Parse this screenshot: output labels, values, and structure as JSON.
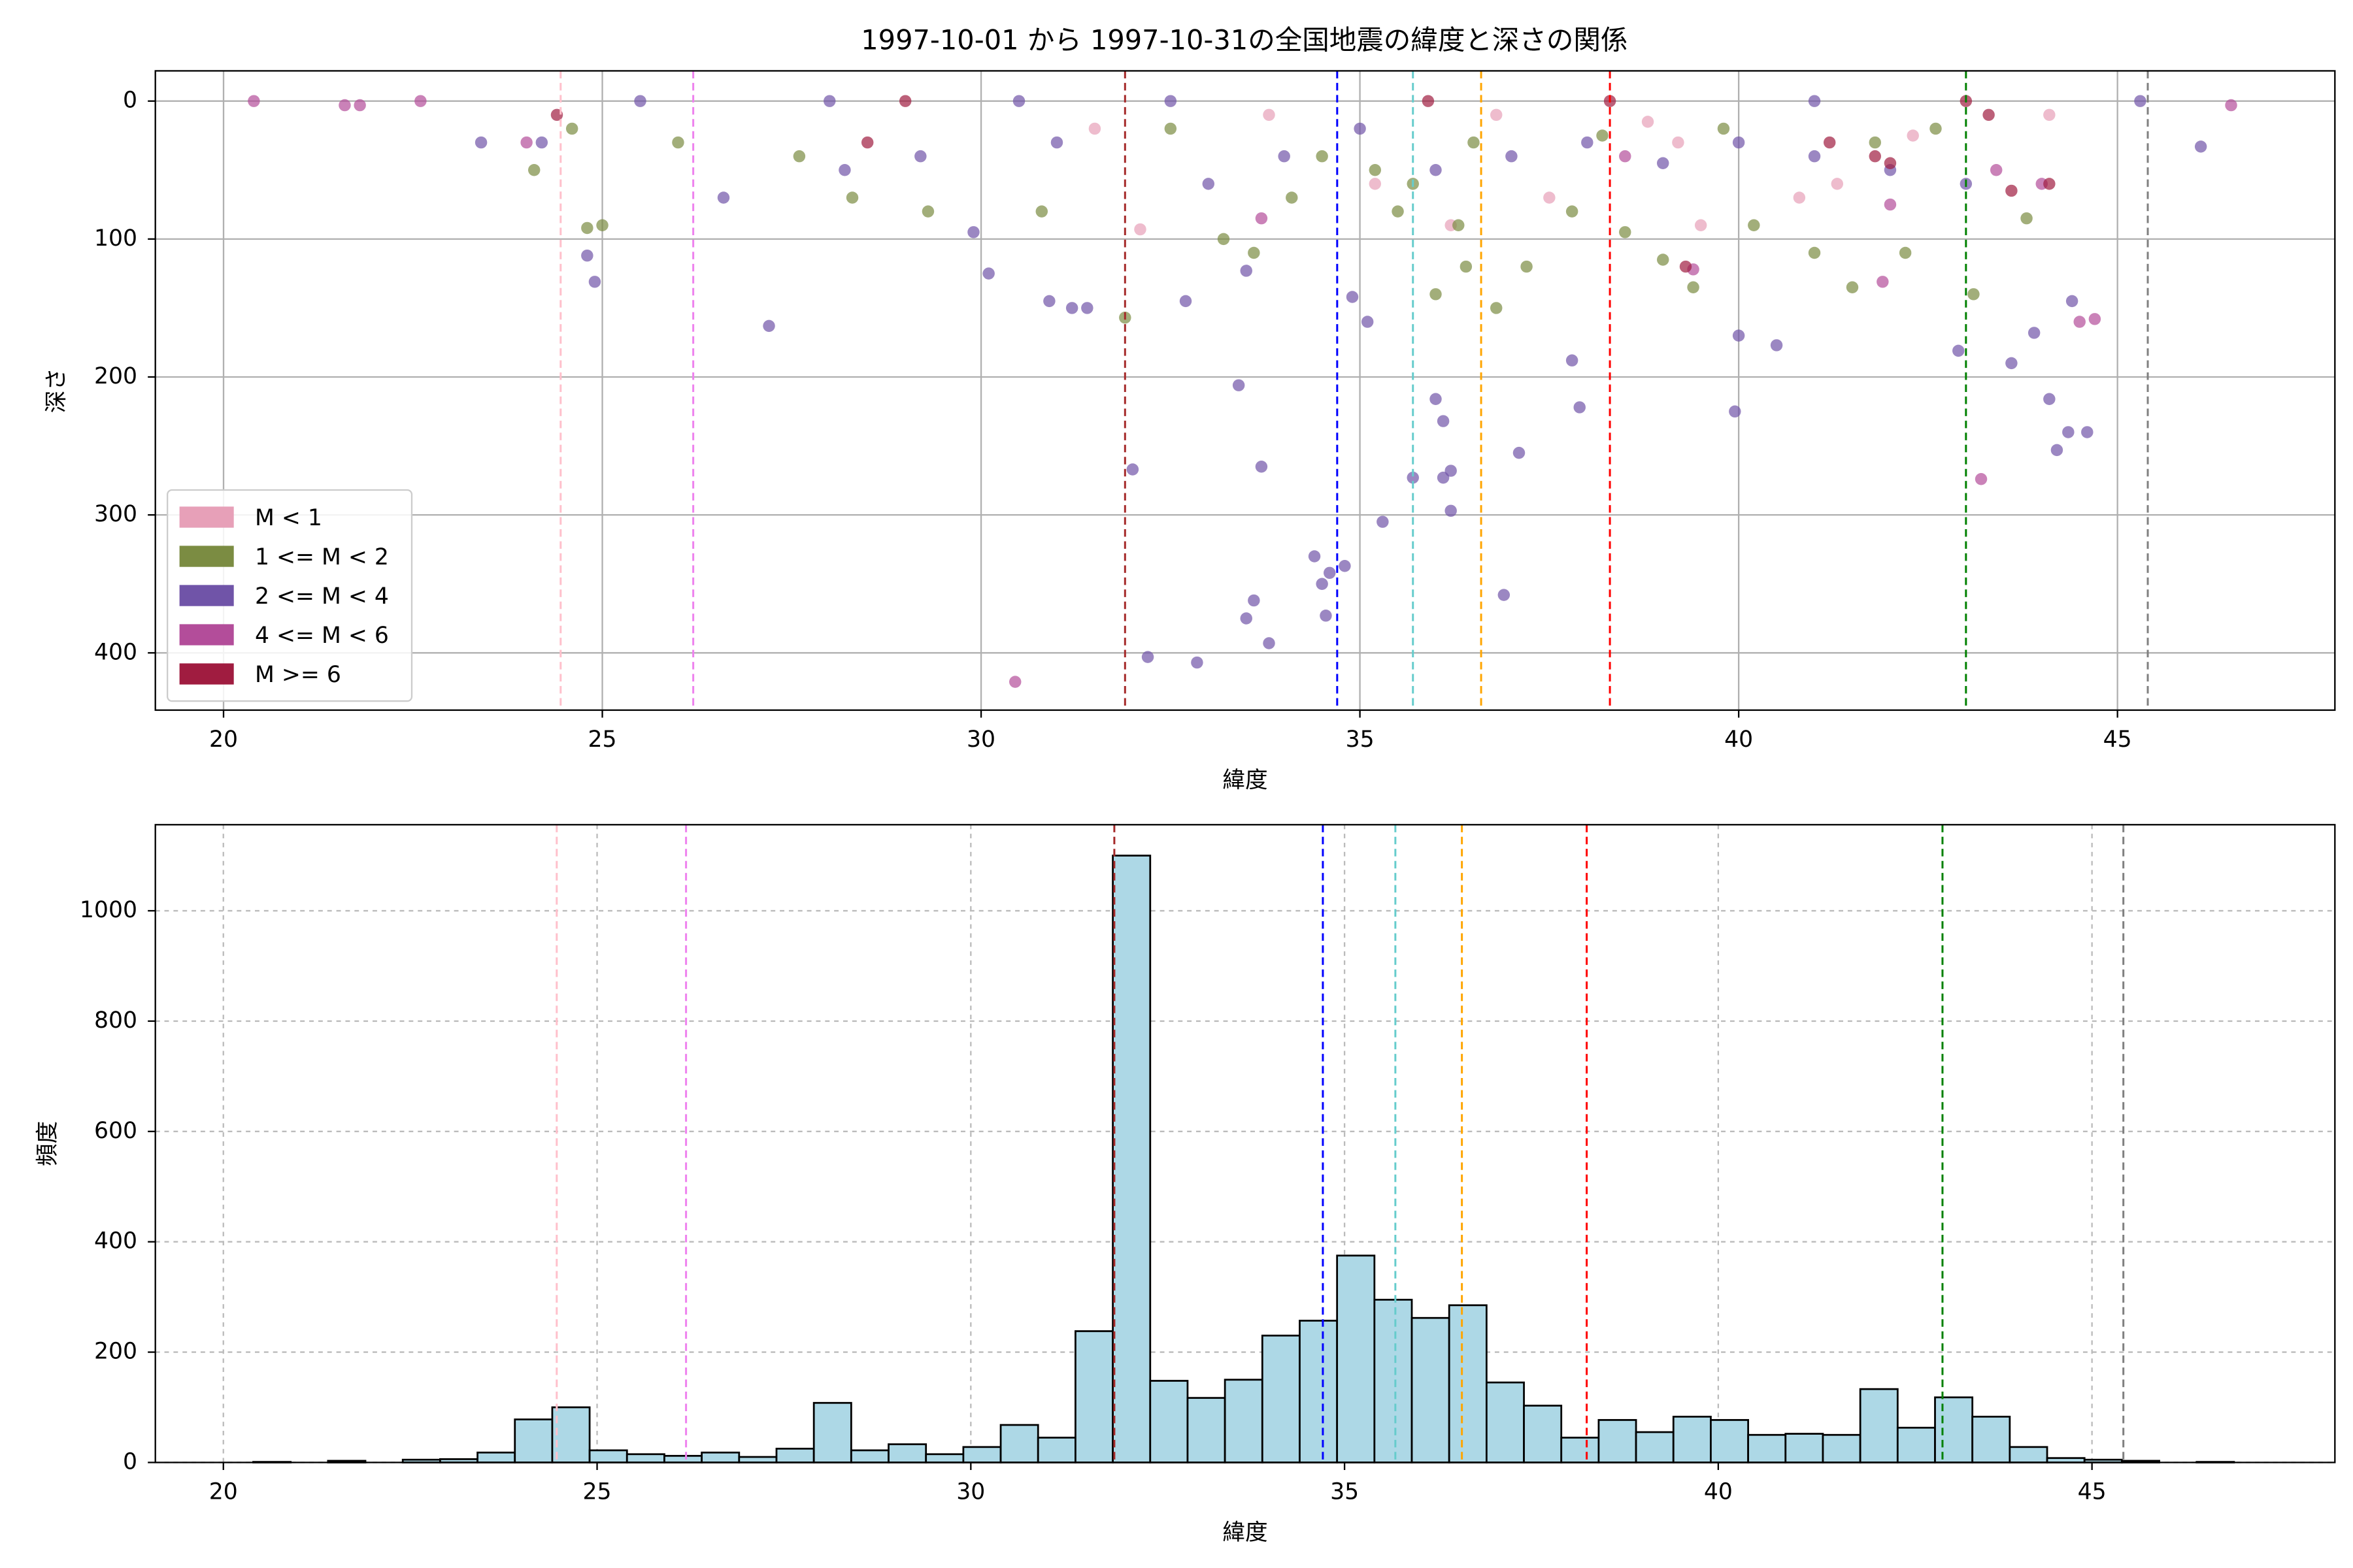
{
  "chart_data": [
    {
      "type": "scatter",
      "title": "1997-10-01 から 1997-10-31の全国地震の緯度と深さの関係",
      "xlabel": "緯度",
      "ylabel": "深さ",
      "xlim": [
        19.1,
        47.87
      ],
      "ylim": [
        441.5,
        -21.9
      ],
      "xticks": [
        20,
        25,
        30,
        35,
        40,
        45
      ],
      "yticks": [
        0,
        100,
        200,
        300,
        400
      ],
      "grid": true,
      "legend": "lower left",
      "series": [
        {
          "name": "M < 1",
          "color": "#e7a0b8",
          "x": [
            31.5,
            32.1,
            35.2,
            36.2,
            37.5,
            39.2,
            39.5,
            40.8,
            41.3,
            42.3,
            33.8,
            36.8,
            38.8,
            44.1
          ],
          "y": [
            20,
            93,
            60,
            90,
            70,
            30,
            90,
            70,
            60,
            25,
            10,
            10,
            15,
            10
          ]
        },
        {
          "name": "1 <= M < 2",
          "color": "#7b8c42",
          "x": [
            24.6,
            24.8,
            25,
            26,
            27.6,
            28.3,
            29.3,
            30.8,
            31.9,
            33.2,
            33.6,
            34.1,
            35.2,
            35.7,
            36.0,
            36.4,
            36.8,
            37.2,
            37.8,
            38.5,
            39,
            39.4,
            40.2,
            41,
            41.5,
            42.2,
            43.1,
            43.8,
            32.5,
            34.5,
            36.5,
            38.2,
            39.8,
            41.8,
            42.6,
            35.5,
            36.3,
            24.1
          ],
          "y": [
            20,
            92,
            90,
            30,
            40,
            70,
            80,
            80,
            157,
            100,
            110,
            70,
            50,
            60,
            140,
            120,
            150,
            120,
            80,
            95,
            115,
            135,
            90,
            110,
            135,
            110,
            140,
            85,
            20,
            40,
            30,
            25,
            20,
            30,
            20,
            80,
            90,
            50
          ]
        },
        {
          "name": "2 <= M < 4",
          "color": "#7054a8",
          "x": [
            32.2,
            32.85,
            33.8,
            33.5,
            33.6,
            33.7,
            33.4,
            34.4,
            34.5,
            34.55,
            34.6,
            34.8,
            35.3,
            35.7,
            36.1,
            36.2,
            36.1,
            36.2,
            36.0,
            36.9,
            37.1,
            37.9,
            37.8,
            39.95,
            42.9,
            44.1,
            44.2,
            44.35,
            44.6,
            43.6,
            43.9,
            24.9,
            24.8,
            27.2,
            29.9,
            30.1,
            30.9,
            31.2,
            31.4,
            32.0,
            32.7,
            33.5,
            34.9,
            35.1,
            40.0,
            40.5,
            44.4,
            46.1,
            30.5,
            32.5,
            28,
            25.5,
            41,
            45.3,
            33,
            34,
            35,
            36,
            37,
            38,
            39,
            40,
            41,
            42,
            43,
            23.4,
            24.2,
            26.6,
            28.2,
            29.2,
            31.0
          ],
          "y": [
            403,
            407,
            393,
            375,
            362,
            265,
            206,
            330,
            350,
            373,
            342,
            337,
            305,
            273,
            273,
            268,
            232,
            297,
            216,
            358,
            255,
            222,
            188,
            225,
            181,
            216,
            253,
            240,
            240,
            190,
            168,
            131,
            112,
            163,
            95,
            125,
            145,
            150,
            150,
            267,
            145,
            123,
            142,
            160,
            170,
            177,
            145,
            33,
            0,
            0,
            0,
            0,
            0,
            0,
            60,
            40,
            20,
            50,
            40,
            30,
            45,
            30,
            40,
            50,
            60,
            30,
            30,
            70,
            50,
            40,
            30
          ]
        },
        {
          "name": "4 <= M < 6",
          "color": "#b34d9a",
          "x": [
            20.4,
            21.6,
            21.8,
            22.6,
            30.45,
            24,
            33.7,
            38.5,
            39.4,
            41.9,
            43.2,
            44.5,
            44.7,
            46.5,
            42,
            43.4,
            44
          ],
          "y": [
            0,
            3,
            3,
            0,
            421,
            30,
            85,
            40,
            122,
            131,
            274,
            160,
            158,
            3,
            75,
            50,
            60
          ]
        },
        {
          "name": "M >= 6",
          "color": "#a01c40",
          "x": [
            29.0,
            35.9,
            38.3,
            43.0,
            39.3,
            41.8,
            42.0,
            43.6,
            44.1,
            43.3,
            41.2,
            28.5,
            24.4
          ],
          "y": [
            0,
            0,
            0,
            0,
            120,
            40,
            45,
            65,
            60,
            10,
            30,
            30,
            10
          ]
        }
      ],
      "vlines": [
        {
          "x": 24.45,
          "color": "pink"
        },
        {
          "x": 26.2,
          "color": "violet"
        },
        {
          "x": 31.9,
          "color": "brown"
        },
        {
          "x": 34.7,
          "color": "blue"
        },
        {
          "x": 35.7,
          "color": "#66cccc"
        },
        {
          "x": 36.6,
          "color": "orange"
        },
        {
          "x": 38.3,
          "color": "red"
        },
        {
          "x": 43.0,
          "color": "green"
        },
        {
          "x": 45.4,
          "color": "gray"
        }
      ]
    },
    {
      "type": "histogram",
      "xlabel": "緯度",
      "ylabel": "頻度",
      "xlim": [
        19.09,
        48.25
      ],
      "ylim": [
        0,
        1156
      ],
      "xticks": [
        20,
        25,
        30,
        35,
        40,
        45
      ],
      "yticks": [
        0,
        200,
        400,
        600,
        800,
        1000
      ],
      "grid": true,
      "grid_style": "dashed",
      "color": "lightblue",
      "edgecolor": "black",
      "bins": [
        20.4,
        20.9,
        21.4,
        21.9,
        22.4,
        22.9,
        23.4,
        23.9,
        24.4,
        24.9,
        25.4,
        25.9,
        26.4,
        26.9,
        27.4,
        27.9,
        28.4,
        28.9,
        29.4,
        29.9,
        30.4,
        30.9,
        31.4,
        31.9,
        32.4,
        32.9,
        33.4,
        33.9,
        34.4,
        34.9,
        35.4,
        35.9,
        36.4,
        36.9,
        37.4,
        37.9,
        38.4,
        38.9,
        39.4,
        39.9,
        40.4,
        40.9,
        41.4,
        41.9,
        42.4,
        42.9,
        43.4,
        43.9,
        44.4,
        44.9,
        45.4,
        45.9,
        46.4,
        46.9
      ],
      "counts": [
        1,
        0,
        3,
        0,
        5,
        6,
        18,
        78,
        100,
        22,
        15,
        12,
        18,
        10,
        25,
        108,
        22,
        33,
        15,
        28,
        68,
        45,
        238,
        1100,
        148,
        117,
        150,
        230,
        257,
        375,
        295,
        262,
        285,
        145,
        103,
        45,
        77,
        55,
        83,
        77,
        50,
        52,
        50,
        133,
        63,
        118,
        83,
        28,
        8,
        5,
        3,
        0,
        1
      ],
      "vlines": [
        {
          "x": 24.46,
          "color": "pink"
        },
        {
          "x": 26.19,
          "color": "violet"
        },
        {
          "x": 31.92,
          "color": "brown"
        },
        {
          "x": 34.71,
          "color": "blue"
        },
        {
          "x": 35.68,
          "color": "#66cccc"
        },
        {
          "x": 36.57,
          "color": "orange"
        },
        {
          "x": 38.24,
          "color": "red"
        },
        {
          "x": 43.0,
          "color": "green"
        },
        {
          "x": 45.42,
          "color": "gray"
        }
      ]
    }
  ]
}
